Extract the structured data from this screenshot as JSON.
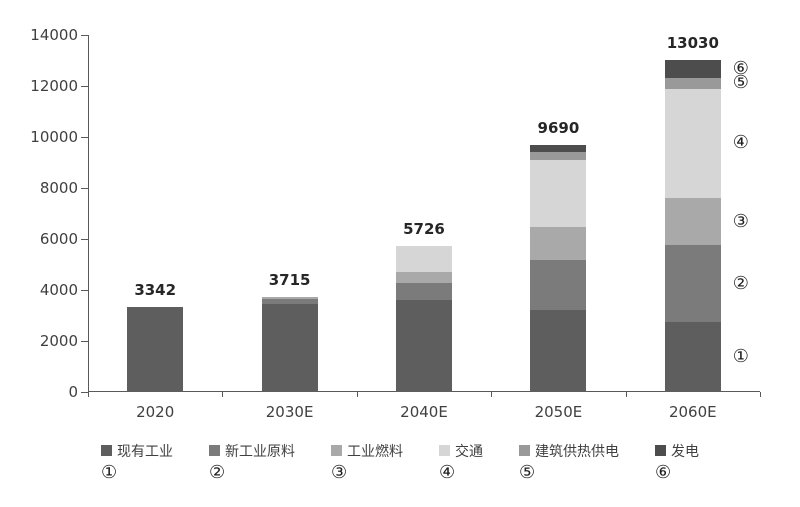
{
  "chart": {
    "background": "#ffffff",
    "axis_color": "#595959",
    "text_color": "#404040"
  },
  "chart_data": {
    "type": "bar",
    "stacked": true,
    "title": "",
    "xlabel": "",
    "ylabel": "",
    "ylim": [
      0,
      14000
    ],
    "yticks": [
      "0",
      "2000",
      "4000",
      "6000",
      "8000",
      "10000",
      "12000",
      "14000"
    ],
    "grid": false,
    "legend_position": "bottom",
    "categories": [
      "2020",
      "2030E",
      "2040E",
      "2050E",
      "2060E"
    ],
    "totals": [
      "3342",
      "3715",
      "5726",
      "9690",
      "13030"
    ],
    "annotated_category": "2060E",
    "series": [
      {
        "name": "现有工业",
        "marker": "①",
        "color": "#5e5e5e",
        "values": [
          3342,
          3450,
          3600,
          3200,
          2750
        ]
      },
      {
        "name": "新工业原料",
        "marker": "②",
        "color": "#7b7b7b",
        "values": [
          0,
          185,
          670,
          1970,
          3000
        ]
      },
      {
        "name": "工业燃料",
        "marker": "③",
        "color": "#a9a9a9",
        "values": [
          0,
          80,
          430,
          1290,
          1850
        ]
      },
      {
        "name": "交通",
        "marker": "④",
        "color": "#d6d6d6",
        "values": [
          0,
          0,
          1026,
          2630,
          4300
        ]
      },
      {
        "name": "建筑供热供电",
        "marker": "⑤",
        "color": "#999999",
        "values": [
          0,
          0,
          0,
          310,
          400
        ]
      },
      {
        "name": "发电",
        "marker": "⑥",
        "color": "#4d4d4d",
        "values": [
          0,
          0,
          0,
          290,
          730
        ]
      }
    ]
  }
}
